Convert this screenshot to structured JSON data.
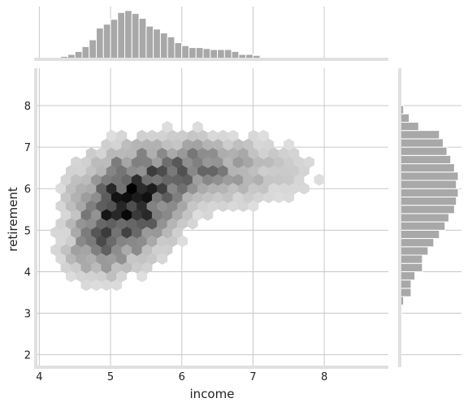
{
  "chart_data": {
    "type": "hexbin-jointplot",
    "xlabel": "income",
    "ylabel": "retirement",
    "xlim": [
      3.95,
      8.9
    ],
    "ylim": [
      1.7,
      8.9
    ],
    "xticks": [
      4,
      5,
      6,
      7,
      8
    ],
    "yticks": [
      2,
      3,
      4,
      5,
      6,
      7,
      8
    ],
    "grid": true,
    "colors": {
      "hex_max": "#000000",
      "hex_min": "#f0f0f0",
      "bar": "#a8a8a8",
      "bar_edge": "#ffffff",
      "grid": "#c8c8c8",
      "spine": "#e0e0e0"
    },
    "joint_density": {
      "clusters": [
        {
          "cx": 5.2,
          "cy": 5.55,
          "sx": 0.38,
          "sy": 0.62,
          "w": 1.0
        },
        {
          "cx": 6.15,
          "cy": 6.55,
          "sx": 0.55,
          "sy": 0.4,
          "w": 0.42
        },
        {
          "cx": 4.85,
          "cy": 4.55,
          "sx": 0.3,
          "sy": 0.45,
          "w": 0.35
        },
        {
          "cx": 5.6,
          "cy": 6.15,
          "sx": 0.45,
          "sy": 0.5,
          "w": 0.3
        },
        {
          "cx": 7.0,
          "cy": 6.3,
          "sx": 0.7,
          "sy": 0.55,
          "w": 0.1
        }
      ],
      "threshold": 0.03
    },
    "income_marginal": {
      "bins_start": 4.0,
      "bin_width": 0.1,
      "counts": [
        0,
        0.5,
        1,
        3,
        5,
        8,
        13,
        20,
        32,
        36,
        41,
        48,
        50,
        47,
        42,
        34,
        31,
        27,
        23,
        17,
        14,
        12,
        12,
        11,
        10,
        10,
        10,
        8,
        5,
        5,
        4,
        2,
        1,
        1
      ]
    },
    "retirement_marginal": {
      "bins_start": 2.2,
      "bin_width": 0.2,
      "counts": [
        0.5,
        0.5,
        0,
        0,
        0.5,
        1,
        3,
        3,
        4,
        6,
        6,
        7.5,
        9,
        10.5,
        12,
        13,
        14.5,
        15,
        15.5,
        15,
        15.5,
        14.5,
        13.5,
        12.5,
        11.5,
        10.5,
        5,
        2.5,
        1
      ]
    }
  }
}
